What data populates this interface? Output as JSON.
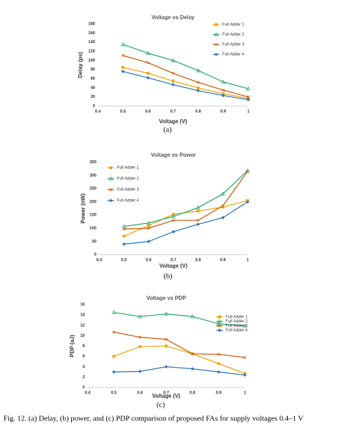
{
  "chart_data": [
    {
      "type": "line",
      "title": "Voltage vs Delay",
      "x_label": "Voltage (V)",
      "y_label": "Delay (ps)",
      "panel_label": "(a)",
      "x": [
        0.5,
        0.6,
        0.7,
        0.8,
        0.9,
        1
      ],
      "xlim": [
        0.4,
        1
      ],
      "xticks": [
        0.4,
        0.5,
        0.6,
        0.7,
        0.8,
        0.9,
        1
      ],
      "ylim": [
        0,
        180
      ],
      "yticks": [
        0,
        20,
        40,
        60,
        80,
        100,
        120,
        140,
        160,
        180
      ],
      "grid": false,
      "legend": "upper-right",
      "series": [
        {
          "name": "Full Adder 1",
          "color": "#f0a30a",
          "marker": "square",
          "values": [
            85,
            72,
            55,
            40,
            27,
            17
          ]
        },
        {
          "name": "Full Adder 2",
          "color": "#2ea86b",
          "marker": "triangle",
          "values": [
            135,
            116,
            100,
            78,
            53,
            38
          ]
        },
        {
          "name": "Full Adder 3",
          "color": "#c55a11",
          "marker": "cross",
          "values": [
            111,
            95,
            72,
            52,
            35,
            20
          ]
        },
        {
          "name": "Full Adder 4",
          "color": "#2e75b6",
          "marker": "diamond",
          "values": [
            76,
            62,
            47,
            34,
            23,
            14
          ]
        }
      ]
    },
    {
      "type": "line",
      "title": "Voltage vs Power",
      "x_label": "Voltage (V)",
      "y_label": "Power (nW)",
      "panel_label": "(b)",
      "x": [
        0.5,
        0.6,
        0.7,
        0.8,
        0.9,
        1
      ],
      "xlim": [
        0.4,
        1
      ],
      "xticks": [
        0.4,
        0.5,
        0.6,
        0.7,
        0.8,
        0.9,
        1
      ],
      "ylim": [
        0,
        350
      ],
      "yticks": [
        0,
        50,
        100,
        150,
        200,
        250,
        300,
        350
      ],
      "grid": false,
      "legend": "upper-left",
      "series": [
        {
          "name": "Full Adder 1",
          "color": "#f0a30a",
          "marker": "square",
          "values": [
            70,
            110,
            153,
            165,
            180,
            205
          ]
        },
        {
          "name": "Full Adder 2",
          "color": "#2ea86b",
          "marker": "triangle",
          "values": [
            107,
            120,
            145,
            178,
            230,
            318
          ]
        },
        {
          "name": "Full Adder 3",
          "color": "#c55a11",
          "marker": "cross",
          "values": [
            97,
            100,
            130,
            130,
            185,
            315
          ]
        },
        {
          "name": "Full Adder 4",
          "color": "#2e75b6",
          "marker": "diamond",
          "values": [
            40,
            50,
            87,
            115,
            140,
            200
          ]
        }
      ]
    },
    {
      "type": "line",
      "title": "Voltage vs PDP",
      "x_label": "Voltage (V)",
      "y_label": "PDP (aJ)",
      "panel_label": "(c)",
      "x": [
        0.5,
        0.6,
        0.7,
        0.8,
        0.9,
        1
      ],
      "xlim": [
        0.4,
        1
      ],
      "xticks": [
        0.4,
        0.5,
        0.6,
        0.7,
        0.8,
        0.9,
        1
      ],
      "ylim": [
        0,
        16
      ],
      "yticks": [
        0,
        2,
        4,
        6,
        8,
        10,
        12,
        14,
        16
      ],
      "grid": false,
      "legend": "upper-right-compact",
      "series": [
        {
          "name": "Full Adder 1",
          "color": "#f0a30a",
          "marker": "square",
          "values": [
            6,
            7.9,
            8,
            6.5,
            4.6,
            2.7
          ]
        },
        {
          "name": "Full Adder 2",
          "color": "#2ea86b",
          "marker": "triangle",
          "values": [
            14.5,
            13.7,
            14.2,
            13.7,
            12.3,
            11.9
          ]
        },
        {
          "name": "Full Adder 3",
          "color": "#c55a11",
          "marker": "cross",
          "values": [
            10.7,
            9.7,
            9.3,
            6.5,
            6.4,
            5.8
          ]
        },
        {
          "name": "Full Adder 4",
          "color": "#2e75b6",
          "marker": "diamond",
          "values": [
            3,
            3.1,
            4,
            3.6,
            3,
            2.4
          ]
        }
      ]
    }
  ],
  "caption": "Fig. 12. (a) Delay, (b) power, and (c) PDP comparison of proposed FAs for supply voltages 0.4–1 V"
}
